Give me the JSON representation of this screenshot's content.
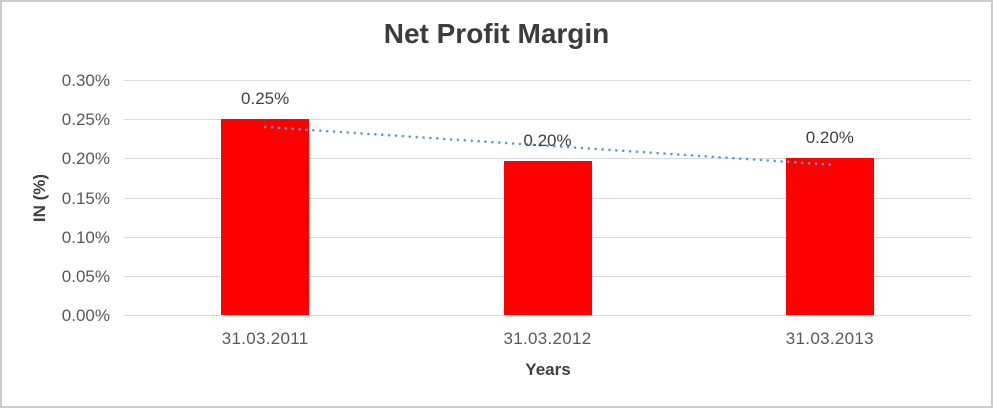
{
  "frame": {
    "background": "#ffffff",
    "border_color": "#cccccc"
  },
  "chart_data": {
    "type": "bar",
    "title": "Net Profit Margin",
    "xlabel": "Years",
    "ylabel": "IN (%)",
    "categories": [
      "31.03.2011",
      "31.03.2012",
      "31.03.2013"
    ],
    "values": [
      0.25,
      0.197,
      0.201
    ],
    "data_labels": [
      "0.25%",
      "0.20%",
      "0.20%"
    ],
    "y_ticks": [
      "0.30%",
      "0.25%",
      "0.20%",
      "0.15%",
      "0.10%",
      "0.05%",
      "0.00%"
    ],
    "y_tick_values": [
      0.3,
      0.25,
      0.2,
      0.15,
      0.1,
      0.05,
      0.0
    ],
    "ylim": [
      0,
      0.3
    ],
    "grid": true,
    "legend": "none",
    "bar_color": "#ff0000",
    "trendline": {
      "style": "dotted",
      "color": "#5b9bd5",
      "start_value": 0.24,
      "end_value": 0.192
    },
    "colors": {
      "title": "#3c3c3c",
      "axis_title": "#404040",
      "tick_label": "#595959",
      "data_label": "#404040",
      "gridline": "#d9d9d9"
    }
  }
}
